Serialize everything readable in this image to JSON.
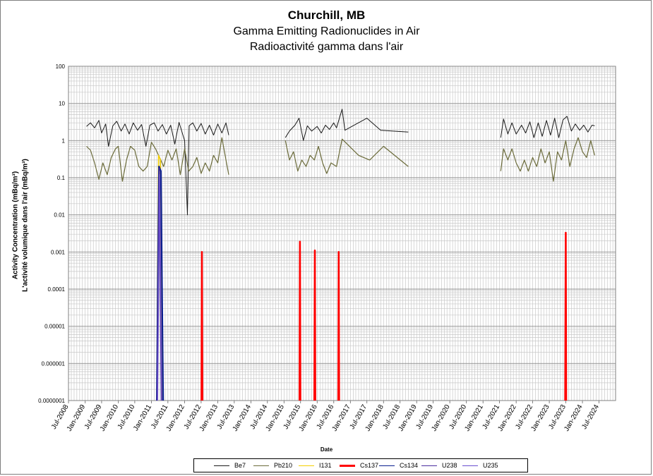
{
  "chart_data": {
    "type": "line",
    "title": "Churchill, MB",
    "subtitle_en": "Gamma Emitting Radionuclides in Air",
    "subtitle_fr": "Radioactivité gamma dans l'air",
    "ylabel_en": "Activity Concentration  (mBq/m³)",
    "ylabel_fr": "L'activité volumique dans l'air (mBq/m³)",
    "xlabel": "Date",
    "y_scale": "log",
    "ylim": [
      1e-07,
      100
    ],
    "y_ticks": [
      "100",
      "10",
      "1",
      "0.1",
      "0.01",
      "0.001",
      "0.0001",
      "0.00001",
      "0.000001",
      "0.0000001"
    ],
    "x_ticks": [
      "Jul-2008",
      "Jan-2009",
      "Jul-2009",
      "Jan-2010",
      "Jul-2010",
      "Jan-2011",
      "Jul-2011",
      "Jan-2012",
      "Jul-2012",
      "Jan-2013",
      "Jul-2013",
      "Jan-2014",
      "Jul-2014",
      "Jan-2015",
      "Jul-2015",
      "Jan-2016",
      "Jul-2016",
      "Jan-2017",
      "Jul-2017",
      "Jan-2018",
      "Jul-2018",
      "Jan-2019",
      "Jul-2019",
      "Jan-2020",
      "Jul-2020",
      "Jan-2021",
      "Jul-2021",
      "Jan-2022",
      "Jul-2022",
      "Jan-2023",
      "Jul-2023",
      "Jan-2024",
      "Jul-2024"
    ],
    "grid": true,
    "legend_position": "bottom",
    "series": [
      {
        "name": "Be7",
        "color": "#1a1a1a",
        "segments": [
          [
            [
              "2009-01-15",
              2.4
            ],
            [
              "2009-03-01",
              3.0
            ],
            [
              "2009-04-15",
              2.2
            ],
            [
              "2009-06-01",
              3.5
            ],
            [
              "2009-07-01",
              1.6
            ],
            [
              "2009-08-15",
              2.8
            ],
            [
              "2009-09-15",
              0.7
            ],
            [
              "2009-11-01",
              2.5
            ],
            [
              "2009-12-15",
              3.3
            ],
            [
              "2010-02-01",
              1.8
            ],
            [
              "2010-03-15",
              2.8
            ],
            [
              "2010-05-01",
              1.5
            ],
            [
              "2010-06-15",
              3.0
            ],
            [
              "2010-08-01",
              1.9
            ],
            [
              "2010-09-15",
              2.7
            ],
            [
              "2010-11-01",
              0.7
            ],
            [
              "2010-12-15",
              2.6
            ],
            [
              "2011-02-01",
              3.0
            ],
            [
              "2011-03-15",
              1.8
            ],
            [
              "2011-05-01",
              2.7
            ],
            [
              "2011-06-15",
              1.5
            ],
            [
              "2011-08-01",
              2.6
            ],
            [
              "2011-09-15",
              0.8
            ],
            [
              "2011-11-01",
              3.1
            ],
            [
              "2012-01-01",
              1.0
            ],
            [
              "2012-02-01",
              0.01
            ],
            [
              "2012-02-20",
              2.5
            ],
            [
              "2012-04-01",
              3.0
            ],
            [
              "2012-05-15",
              1.8
            ],
            [
              "2012-07-01",
              2.9
            ],
            [
              "2012-08-15",
              1.5
            ],
            [
              "2012-10-01",
              2.6
            ],
            [
              "2012-11-15",
              1.4
            ],
            [
              "2013-01-01",
              2.8
            ],
            [
              "2013-02-15",
              1.6
            ],
            [
              "2013-04-01",
              3.0
            ],
            [
              "2013-05-01",
              1.4
            ]
          ],
          [
            [
              "2015-01-15",
              1.2
            ],
            [
              "2015-03-01",
              1.8
            ],
            [
              "2015-05-01",
              2.6
            ],
            [
              "2015-06-15",
              4.0
            ],
            [
              "2015-08-01",
              1.0
            ],
            [
              "2015-09-15",
              2.5
            ],
            [
              "2015-11-01",
              1.8
            ],
            [
              "2016-01-01",
              2.4
            ],
            [
              "2016-02-15",
              1.6
            ],
            [
              "2016-04-01",
              2.6
            ],
            [
              "2016-05-15",
              2.0
            ],
            [
              "2016-07-01",
              3.0
            ],
            [
              "2016-08-01",
              2.2
            ],
            [
              "2016-10-01",
              7.0
            ],
            [
              "2016-11-01",
              1.9
            ],
            [
              "2017-07-01",
              4.0
            ],
            [
              "2017-12-01",
              1.9
            ],
            [
              "2018-10-01",
              1.7
            ]
          ],
          [
            [
              "2021-07-15",
              1.2
            ],
            [
              "2021-08-15",
              3.8
            ],
            [
              "2021-10-01",
              1.5
            ],
            [
              "2021-11-15",
              3.0
            ],
            [
              "2022-01-01",
              1.5
            ],
            [
              "2022-03-01",
              2.6
            ],
            [
              "2022-04-15",
              1.6
            ],
            [
              "2022-06-01",
              3.2
            ],
            [
              "2022-07-15",
              1.2
            ],
            [
              "2022-09-01",
              3.0
            ],
            [
              "2022-10-15",
              1.3
            ],
            [
              "2022-12-01",
              3.5
            ],
            [
              "2023-01-15",
              1.4
            ],
            [
              "2023-03-01",
              4.0
            ],
            [
              "2023-04-15",
              1.2
            ],
            [
              "2023-06-01",
              3.6
            ],
            [
              "2023-07-15",
              4.5
            ],
            [
              "2023-09-01",
              1.8
            ],
            [
              "2023-10-15",
              2.8
            ],
            [
              "2023-12-01",
              1.9
            ],
            [
              "2024-01-15",
              2.6
            ],
            [
              "2024-03-01",
              1.7
            ],
            [
              "2024-04-15",
              2.6
            ],
            [
              "2024-05-15",
              2.5
            ]
          ]
        ]
      },
      {
        "name": "Pb210",
        "color": "#6b6b3a",
        "segments": [
          [
            [
              "2009-01-15",
              0.7
            ],
            [
              "2009-03-01",
              0.55
            ],
            [
              "2009-04-15",
              0.25
            ],
            [
              "2009-06-01",
              0.09
            ],
            [
              "2009-07-15",
              0.25
            ],
            [
              "2009-09-01",
              0.12
            ],
            [
              "2009-10-15",
              0.35
            ],
            [
              "2009-12-01",
              0.6
            ],
            [
              "2010-01-01",
              0.7
            ],
            [
              "2010-02-15",
              0.08
            ],
            [
              "2010-04-01",
              0.3
            ],
            [
              "2010-05-15",
              0.7
            ],
            [
              "2010-07-01",
              0.55
            ],
            [
              "2010-08-15",
              0.2
            ],
            [
              "2010-10-01",
              0.15
            ],
            [
              "2010-11-15",
              0.2
            ],
            [
              "2011-01-01",
              0.9
            ],
            [
              "2011-02-15",
              0.6
            ],
            [
              "2011-04-01",
              0.35
            ],
            [
              "2011-05-15",
              0.2
            ],
            [
              "2011-07-01",
              0.55
            ],
            [
              "2011-08-15",
              0.3
            ],
            [
              "2011-10-01",
              0.6
            ],
            [
              "2011-11-15",
              0.12
            ],
            [
              "2012-01-01",
              0.6
            ],
            [
              "2012-02-15",
              0.15
            ],
            [
              "2012-04-01",
              0.2
            ],
            [
              "2012-05-15",
              0.35
            ],
            [
              "2012-07-01",
              0.13
            ],
            [
              "2012-08-15",
              0.25
            ],
            [
              "2012-10-01",
              0.15
            ],
            [
              "2012-11-15",
              0.4
            ],
            [
              "2013-01-01",
              0.25
            ],
            [
              "2013-02-15",
              1.2
            ],
            [
              "2013-04-01",
              0.3
            ],
            [
              "2013-05-01",
              0.12
            ]
          ],
          [
            [
              "2015-01-15",
              1.0
            ],
            [
              "2015-03-01",
              0.3
            ],
            [
              "2015-04-15",
              0.5
            ],
            [
              "2015-06-01",
              0.15
            ],
            [
              "2015-07-15",
              0.3
            ],
            [
              "2015-09-01",
              0.2
            ],
            [
              "2015-10-15",
              0.4
            ],
            [
              "2015-12-01",
              0.3
            ],
            [
              "2016-01-15",
              0.7
            ],
            [
              "2016-03-01",
              0.25
            ],
            [
              "2016-04-15",
              0.13
            ],
            [
              "2016-06-01",
              0.25
            ],
            [
              "2016-08-01",
              0.2
            ],
            [
              "2016-10-01",
              1.1
            ],
            [
              "2017-04-01",
              0.4
            ],
            [
              "2017-08-01",
              0.3
            ],
            [
              "2018-01-01",
              0.7
            ],
            [
              "2018-10-01",
              0.2
            ]
          ],
          [
            [
              "2021-07-15",
              0.15
            ],
            [
              "2021-08-15",
              0.6
            ],
            [
              "2021-10-01",
              0.3
            ],
            [
              "2021-11-15",
              0.6
            ],
            [
              "2022-01-01",
              0.25
            ],
            [
              "2022-02-15",
              0.15
            ],
            [
              "2022-04-01",
              0.3
            ],
            [
              "2022-05-15",
              0.15
            ],
            [
              "2022-07-01",
              0.35
            ],
            [
              "2022-08-15",
              0.2
            ],
            [
              "2022-10-01",
              0.6
            ],
            [
              "2022-11-15",
              0.25
            ],
            [
              "2023-01-01",
              0.5
            ],
            [
              "2023-02-15",
              0.08
            ],
            [
              "2023-04-01",
              0.5
            ],
            [
              "2023-05-15",
              0.3
            ],
            [
              "2023-07-01",
              1.0
            ],
            [
              "2023-08-15",
              0.2
            ],
            [
              "2023-10-01",
              0.6
            ],
            [
              "2023-11-15",
              1.2
            ],
            [
              "2024-01-01",
              0.5
            ],
            [
              "2024-02-15",
              0.35
            ],
            [
              "2024-04-01",
              1.0
            ],
            [
              "2024-05-15",
              0.4
            ]
          ]
        ]
      },
      {
        "name": "I131",
        "color": "#f5d000",
        "segments": [
          [
            [
              "2011-03-01",
              1e-07
            ],
            [
              "2011-03-20",
              0.4
            ],
            [
              "2011-04-10",
              0.3
            ],
            [
              "2011-05-01",
              1e-07
            ]
          ]
        ]
      },
      {
        "name": "Cs137",
        "color": "#ff0000",
        "segments": [
          [
            [
              "2012-07-05",
              1e-07
            ],
            [
              "2012-07-10",
              0.001
            ],
            [
              "2012-07-15",
              1e-07
            ]
          ],
          [
            [
              "2015-06-20",
              1e-07
            ],
            [
              "2015-06-25",
              0.0019
            ],
            [
              "2015-06-30",
              1e-07
            ]
          ],
          [
            [
              "2015-12-01",
              1e-07
            ],
            [
              "2015-12-06",
              0.0011
            ],
            [
              "2015-12-11",
              1e-07
            ]
          ],
          [
            [
              "2016-08-20",
              1e-07
            ],
            [
              "2016-08-25",
              0.001
            ],
            [
              "2016-08-30",
              1e-07
            ]
          ],
          [
            [
              "2023-06-25",
              1e-07
            ],
            [
              "2023-07-01",
              0.0033
            ],
            [
              "2023-07-06",
              1e-07
            ]
          ]
        ]
      },
      {
        "name": "Cs134",
        "color": "#0a1f8f",
        "segments": [
          [
            [
              "2011-03-01",
              1e-07
            ],
            [
              "2011-03-25",
              0.2
            ],
            [
              "2011-04-15",
              0.15
            ],
            [
              "2011-05-10",
              1e-07
            ]
          ]
        ]
      },
      {
        "name": "U238",
        "color": "#4b2fa0",
        "segments": [
          [
            [
              "2011-03-05",
              1e-07
            ],
            [
              "2011-03-28",
              0.18
            ],
            [
              "2011-04-20",
              1e-07
            ]
          ]
        ]
      },
      {
        "name": "U235",
        "color": "#6a4fd0",
        "segments": [
          [
            [
              "2011-03-10",
              1e-07
            ],
            [
              "2011-04-01",
              0.12
            ],
            [
              "2011-04-25",
              1e-07
            ]
          ]
        ]
      }
    ]
  }
}
